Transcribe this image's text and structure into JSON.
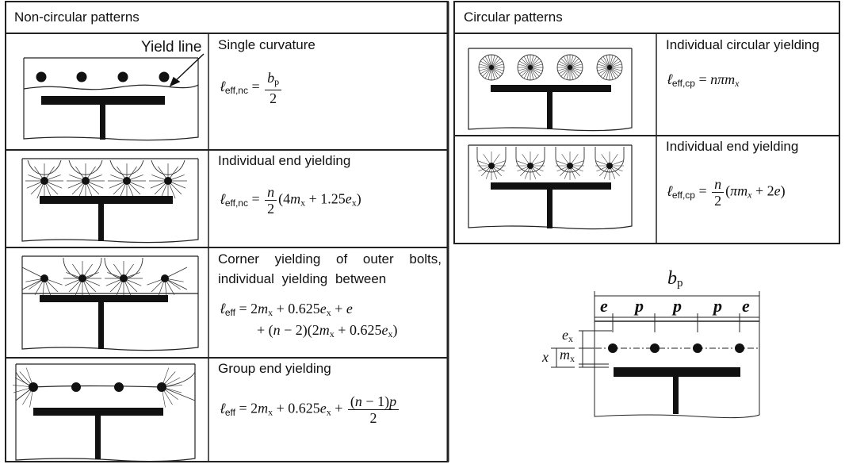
{
  "left_table": {
    "header": "Non-circular patterns",
    "yield_line_label": "Yield line",
    "rows": [
      {
        "title": "Single curvature",
        "formula_text": "ℓeff,nc = bp / 2"
      },
      {
        "title": "Individual end yielding",
        "formula_text": "ℓeff,nc = n/2 (4mx + 1.25ex)"
      },
      {
        "title_line1": "Corner yielding of outer bolts,",
        "title_line2": "individual yielding between",
        "formula_text": "ℓeff = 2mx + 0.625ex + e + (n − 2)(2mx + 0.625ex)"
      },
      {
        "title": "Group end yielding",
        "formula_text": "ℓeff = 2mx + 0.625ex + (n − 1)p / 2"
      }
    ]
  },
  "right_table": {
    "header": "Circular patterns",
    "rows": [
      {
        "title": "Individual circular yielding",
        "formula_text": "ℓeff,cp = nπmx"
      },
      {
        "title": "Individual end yielding",
        "formula_text": "ℓeff,cp = n/2 (πmx + 2e)"
      }
    ]
  },
  "dimension_diagram": {
    "bp_label": "b",
    "bp_sub": "p",
    "spacing_labels": [
      "e",
      "p",
      "p",
      "p",
      "e"
    ],
    "ex_label": "e",
    "ex_sub": "x",
    "mx_label": "m",
    "mx_sub": "x",
    "x_label": "x"
  }
}
